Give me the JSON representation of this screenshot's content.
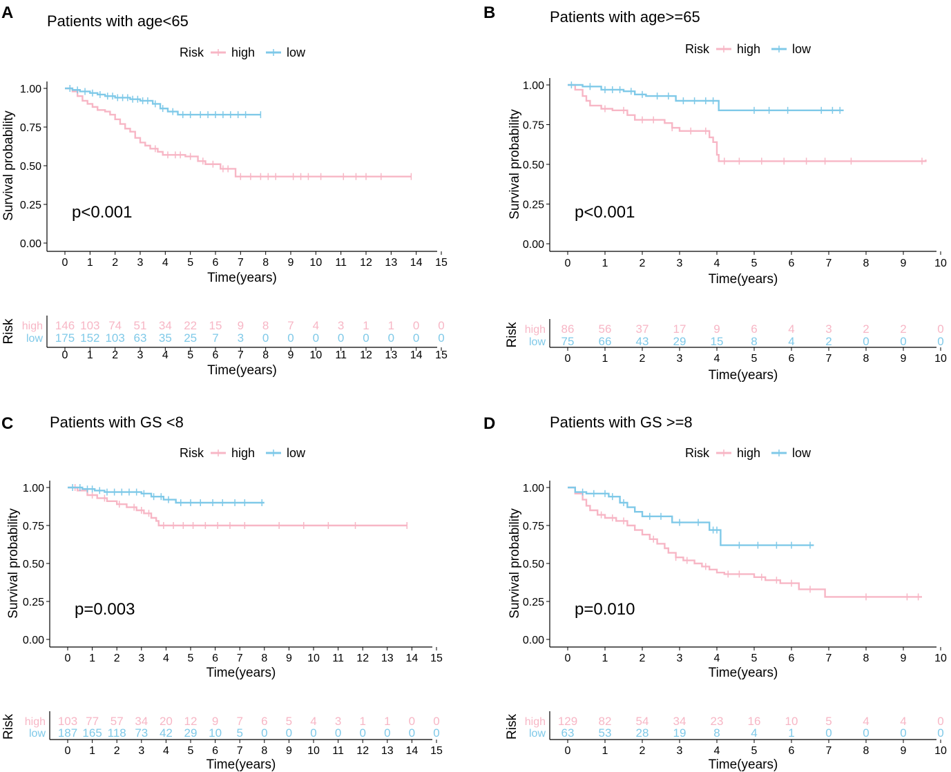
{
  "colors": {
    "high": "#F7B6C5",
    "low": "#7FC9E8",
    "axis": "#000000"
  },
  "chart_data": [
    {
      "type": "line",
      "panel_label": "A",
      "title": "Patients with age<65",
      "legend_title": "Risk",
      "legend_labels": [
        "high",
        "low"
      ],
      "legend_position": "top",
      "ylabel": "Survival probability",
      "xlabel": "Time(years)",
      "ylim": [
        0,
        1
      ],
      "yticks": [
        "0.00",
        "0.25",
        "0.50",
        "0.75",
        "1.00"
      ],
      "xlim": [
        0,
        15
      ],
      "xticks": [
        "0",
        "1",
        "2",
        "3",
        "4",
        "5",
        "6",
        "7",
        "8",
        "9",
        "10",
        "11",
        "12",
        "13",
        "14",
        "15"
      ],
      "pvalue": "p<0.001",
      "series": [
        {
          "name": "high",
          "steps": [
            [
              0,
              1.0
            ],
            [
              0.3,
              0.98
            ],
            [
              0.5,
              0.95
            ],
            [
              0.7,
              0.92
            ],
            [
              0.9,
              0.9
            ],
            [
              1.1,
              0.88
            ],
            [
              1.3,
              0.86
            ],
            [
              1.6,
              0.85
            ],
            [
              1.8,
              0.83
            ],
            [
              2.0,
              0.8
            ],
            [
              2.2,
              0.77
            ],
            [
              2.4,
              0.74
            ],
            [
              2.6,
              0.72
            ],
            [
              2.8,
              0.68
            ],
            [
              3.0,
              0.65
            ],
            [
              3.2,
              0.63
            ],
            [
              3.4,
              0.61
            ],
            [
              3.7,
              0.59
            ],
            [
              3.9,
              0.57
            ],
            [
              4.8,
              0.56
            ],
            [
              5.3,
              0.53
            ],
            [
              5.6,
              0.51
            ],
            [
              6.2,
              0.48
            ],
            [
              6.8,
              0.43
            ],
            [
              13.8,
              0.43
            ]
          ],
          "censor_times": [
            3.6,
            4.1,
            4.4,
            4.6,
            5.0,
            5.5,
            5.9,
            6.3,
            6.5,
            7.0,
            7.4,
            7.8,
            8.1,
            8.4,
            9.1,
            9.4,
            9.7,
            10.2,
            11.1,
            11.6,
            12.0,
            12.6,
            13.8
          ]
        },
        {
          "name": "low",
          "steps": [
            [
              0,
              1.0
            ],
            [
              0.3,
              0.99
            ],
            [
              0.6,
              0.98
            ],
            [
              1.0,
              0.97
            ],
            [
              1.3,
              0.96
            ],
            [
              1.6,
              0.95
            ],
            [
              2.0,
              0.94
            ],
            [
              2.6,
              0.93
            ],
            [
              3.0,
              0.92
            ],
            [
              3.5,
              0.9
            ],
            [
              3.8,
              0.87
            ],
            [
              4.1,
              0.85
            ],
            [
              4.5,
              0.83
            ],
            [
              7.8,
              0.83
            ]
          ],
          "censor_times": [
            0.2,
            0.5,
            0.8,
            1.1,
            1.4,
            1.7,
            1.9,
            2.1,
            2.3,
            2.5,
            2.7,
            2.9,
            3.1,
            3.3,
            3.6,
            3.9,
            4.3,
            4.7,
            5.0,
            5.4,
            5.7,
            6.0,
            6.3,
            6.6,
            6.9,
            7.2,
            7.8
          ]
        }
      ],
      "risk_table": {
        "title": "Risk",
        "rows": [
          {
            "name": "high",
            "counts": [
              "146",
              "103",
              "74",
              "51",
              "34",
              "22",
              "15",
              "9",
              "8",
              "7",
              "4",
              "3",
              "1",
              "1",
              "0",
              "0"
            ]
          },
          {
            "name": "low",
            "counts": [
              "175",
              "152",
              "103",
              "63",
              "35",
              "25",
              "7",
              "3",
              "0",
              "0",
              "0",
              "0",
              "0",
              "0",
              "0",
              "0"
            ]
          }
        ]
      }
    },
    {
      "type": "line",
      "panel_label": "B",
      "title": "Patients with age>=65",
      "legend_title": "Risk",
      "legend_labels": [
        "high",
        "low"
      ],
      "legend_position": "top",
      "ylabel": "Survival probability",
      "xlabel": "Time(years)",
      "ylim": [
        0,
        1
      ],
      "yticks": [
        "0.00",
        "0.25",
        "0.50",
        "0.75",
        "1.00"
      ],
      "xlim": [
        0,
        10
      ],
      "xticks": [
        "0",
        "1",
        "2",
        "3",
        "4",
        "5",
        "6",
        "7",
        "8",
        "9",
        "10"
      ],
      "pvalue": "p<0.001",
      "series": [
        {
          "name": "high",
          "steps": [
            [
              0,
              1.0
            ],
            [
              0.2,
              0.97
            ],
            [
              0.4,
              0.93
            ],
            [
              0.5,
              0.9
            ],
            [
              0.6,
              0.87
            ],
            [
              0.9,
              0.85
            ],
            [
              1.2,
              0.84
            ],
            [
              1.6,
              0.81
            ],
            [
              1.8,
              0.78
            ],
            [
              2.6,
              0.76
            ],
            [
              2.8,
              0.73
            ],
            [
              3.0,
              0.71
            ],
            [
              3.8,
              0.67
            ],
            [
              3.9,
              0.64
            ],
            [
              4.0,
              0.56
            ],
            [
              4.05,
              0.52
            ],
            [
              8.0,
              0.52
            ],
            [
              9.6,
              0.53
            ]
          ],
          "censor_times": [
            1.0,
            1.5,
            2.0,
            2.3,
            2.8,
            3.3,
            3.7,
            4.2,
            4.6,
            5.2,
            5.8,
            6.4,
            6.9,
            7.6,
            9.5
          ]
        },
        {
          "name": "low",
          "steps": [
            [
              0,
              1.0
            ],
            [
              0.4,
              0.99
            ],
            [
              0.9,
              0.97
            ],
            [
              1.5,
              0.96
            ],
            [
              1.8,
              0.94
            ],
            [
              2.1,
              0.93
            ],
            [
              2.9,
              0.9
            ],
            [
              3.9,
              0.9
            ],
            [
              4.05,
              0.84
            ],
            [
              7.4,
              0.84
            ]
          ],
          "censor_times": [
            0.1,
            0.6,
            1.0,
            1.2,
            1.4,
            1.7,
            2.0,
            2.4,
            2.7,
            3.1,
            3.4,
            3.7,
            3.9,
            5.0,
            5.4,
            5.9,
            6.8,
            7.1,
            7.3
          ]
        }
      ],
      "risk_table": {
        "title": "Risk",
        "rows": [
          {
            "name": "high",
            "counts": [
              "86",
              "56",
              "37",
              "17",
              "9",
              "6",
              "4",
              "3",
              "2",
              "2",
              "0"
            ]
          },
          {
            "name": "low",
            "counts": [
              "75",
              "66",
              "43",
              "29",
              "15",
              "8",
              "4",
              "2",
              "0",
              "0",
              "0"
            ]
          }
        ]
      }
    },
    {
      "type": "line",
      "panel_label": "C",
      "title": "Patients with GS <8",
      "legend_title": "Risk",
      "legend_labels": [
        "high",
        "low"
      ],
      "legend_position": "top",
      "ylabel": "Survival probability",
      "xlabel": "Time(years)",
      "ylim": [
        0,
        1
      ],
      "yticks": [
        "0.00",
        "0.25",
        "0.50",
        "0.75",
        "1.00"
      ],
      "xlim": [
        0,
        15
      ],
      "xticks": [
        "0",
        "1",
        "2",
        "3",
        "4",
        "5",
        "6",
        "7",
        "8",
        "9",
        "10",
        "11",
        "12",
        "13",
        "14",
        "15"
      ],
      "pvalue": "p=0.003",
      "series": [
        {
          "name": "high",
          "steps": [
            [
              0,
              1.0
            ],
            [
              0.4,
              0.98
            ],
            [
              0.8,
              0.95
            ],
            [
              1.2,
              0.93
            ],
            [
              1.6,
              0.91
            ],
            [
              2.0,
              0.89
            ],
            [
              2.4,
              0.87
            ],
            [
              2.8,
              0.85
            ],
            [
              3.1,
              0.83
            ],
            [
              3.4,
              0.8
            ],
            [
              3.6,
              0.78
            ],
            [
              3.7,
              0.75
            ],
            [
              13.8,
              0.75
            ]
          ],
          "censor_times": [
            0.3,
            1.0,
            1.5,
            2.1,
            2.7,
            3.0,
            3.3,
            3.9,
            4.3,
            4.7,
            5.1,
            5.6,
            6.1,
            6.6,
            7.2,
            8.6,
            9.6,
            10.6,
            11.7,
            13.8
          ]
        },
        {
          "name": "low",
          "steps": [
            [
              0,
              1.0
            ],
            [
              0.6,
              0.99
            ],
            [
              1.1,
              0.98
            ],
            [
              1.5,
              0.97
            ],
            [
              3.0,
              0.96
            ],
            [
              3.4,
              0.94
            ],
            [
              3.9,
              0.92
            ],
            [
              4.4,
              0.9
            ],
            [
              8.0,
              0.9
            ]
          ],
          "censor_times": [
            0.2,
            0.5,
            0.8,
            1.0,
            1.3,
            1.6,
            1.9,
            2.2,
            2.5,
            2.8,
            3.1,
            3.5,
            3.8,
            4.1,
            4.6,
            5.0,
            5.4,
            5.9,
            6.3,
            6.8,
            7.2,
            7.9
          ]
        }
      ],
      "risk_table": {
        "title": "Risk",
        "rows": [
          {
            "name": "high",
            "counts": [
              "103",
              "77",
              "57",
              "34",
              "20",
              "12",
              "9",
              "7",
              "6",
              "5",
              "4",
              "3",
              "1",
              "1",
              "0",
              "0"
            ]
          },
          {
            "name": "low",
            "counts": [
              "187",
              "165",
              "118",
              "73",
              "42",
              "29",
              "10",
              "5",
              "0",
              "0",
              "0",
              "0",
              "0",
              "0",
              "0",
              "0"
            ]
          }
        ]
      }
    },
    {
      "type": "line",
      "panel_label": "D",
      "title": "Patients with GS >=8",
      "legend_title": "Risk",
      "legend_labels": [
        "high",
        "low"
      ],
      "legend_position": "top",
      "ylabel": "Survival probability",
      "xlabel": "Time(years)",
      "ylim": [
        0,
        1
      ],
      "yticks": [
        "0.00",
        "0.25",
        "0.50",
        "0.75",
        "1.00"
      ],
      "xlim": [
        0,
        10
      ],
      "xticks": [
        "0",
        "1",
        "2",
        "3",
        "4",
        "5",
        "6",
        "7",
        "8",
        "9",
        "10"
      ],
      "pvalue": "p=0.010",
      "series": [
        {
          "name": "high",
          "steps": [
            [
              0,
              1.0
            ],
            [
              0.2,
              0.96
            ],
            [
              0.4,
              0.92
            ],
            [
              0.5,
              0.88
            ],
            [
              0.6,
              0.85
            ],
            [
              0.8,
              0.82
            ],
            [
              1.0,
              0.8
            ],
            [
              1.3,
              0.78
            ],
            [
              1.6,
              0.75
            ],
            [
              1.8,
              0.72
            ],
            [
              2.0,
              0.69
            ],
            [
              2.2,
              0.66
            ],
            [
              2.4,
              0.63
            ],
            [
              2.6,
              0.6
            ],
            [
              2.7,
              0.57
            ],
            [
              2.9,
              0.54
            ],
            [
              3.1,
              0.52
            ],
            [
              3.4,
              0.5
            ],
            [
              3.6,
              0.48
            ],
            [
              3.8,
              0.46
            ],
            [
              4.0,
              0.44
            ],
            [
              4.2,
              0.43
            ],
            [
              5.0,
              0.41
            ],
            [
              5.3,
              0.39
            ],
            [
              5.7,
              0.37
            ],
            [
              6.2,
              0.33
            ],
            [
              6.9,
              0.28
            ],
            [
              9.5,
              0.28
            ]
          ],
          "censor_times": [
            0.9,
            1.2,
            1.5,
            2.3,
            2.9,
            3.2,
            3.7,
            4.3,
            4.6,
            5.2,
            5.6,
            6.0,
            6.5,
            8.0,
            9.1,
            9.4
          ]
        },
        {
          "name": "low",
          "steps": [
            [
              0,
              1.0
            ],
            [
              0.2,
              0.97
            ],
            [
              0.5,
              0.96
            ],
            [
              1.1,
              0.94
            ],
            [
              1.4,
              0.9
            ],
            [
              1.6,
              0.87
            ],
            [
              1.8,
              0.84
            ],
            [
              2.0,
              0.81
            ],
            [
              2.8,
              0.77
            ],
            [
              3.8,
              0.72
            ],
            [
              4.1,
              0.62
            ],
            [
              6.6,
              0.62
            ]
          ],
          "censor_times": [
            0.4,
            0.7,
            1.0,
            1.2,
            1.5,
            2.2,
            2.5,
            3.0,
            3.5,
            3.9,
            4.0,
            4.6,
            5.1,
            5.6,
            6.0,
            6.5
          ]
        }
      ],
      "risk_table": {
        "title": "Risk",
        "rows": [
          {
            "name": "high",
            "counts": [
              "129",
              "82",
              "54",
              "34",
              "23",
              "16",
              "10",
              "5",
              "4",
              "4",
              "0"
            ]
          },
          {
            "name": "low",
            "counts": [
              "63",
              "53",
              "28",
              "19",
              "8",
              "4",
              "1",
              "0",
              "0",
              "0",
              "0"
            ]
          }
        ]
      }
    }
  ]
}
